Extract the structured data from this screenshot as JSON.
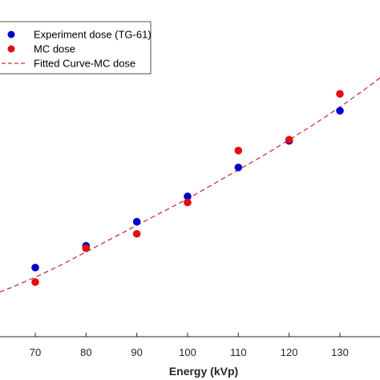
{
  "chart_data": {
    "type": "scatter",
    "title": "",
    "xlabel": "Energy (kVp)",
    "ylabel": "",
    "xlim": [
      60,
      140
    ],
    "ylim": [
      0,
      1
    ],
    "xticks": [
      70,
      80,
      90,
      100,
      110,
      120,
      130
    ],
    "grid": false,
    "legend_position": "top-left",
    "series": [
      {
        "name": "Experiment dose (TG-61)",
        "kind": "scatter",
        "color": "#0000cc",
        "x": [
          70,
          80,
          90,
          100,
          110,
          120,
          130
        ],
        "y": [
          0.22,
          0.31,
          0.41,
          0.515,
          0.635,
          0.745,
          0.87
        ]
      },
      {
        "name": "MC dose",
        "kind": "scatter",
        "color": "#e01010",
        "x": [
          70,
          80,
          90,
          100,
          110,
          120,
          130
        ],
        "y": [
          0.16,
          0.3,
          0.36,
          0.49,
          0.705,
          0.75,
          0.94
        ]
      },
      {
        "name": "Fitted Curve-MC dose",
        "kind": "line",
        "style": "dashed",
        "color": "#cc3333",
        "x": [
          60,
          65,
          70,
          75,
          80,
          85,
          90,
          95,
          100,
          105,
          110,
          115,
          120,
          125,
          130,
          135,
          140
        ],
        "y": [
          0.095,
          0.135,
          0.18,
          0.23,
          0.285,
          0.34,
          0.395,
          0.45,
          0.505,
          0.565,
          0.625,
          0.685,
          0.75,
          0.815,
          0.885,
          0.96,
          1.04
        ]
      }
    ]
  }
}
